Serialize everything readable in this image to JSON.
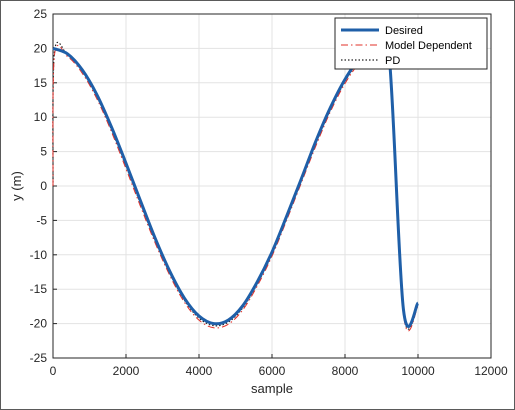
{
  "chart_data": {
    "type": "line",
    "title": "",
    "xlabel": "sample",
    "ylabel": "y (m)",
    "xlim": [
      0,
      12000
    ],
    "ylim": [
      -25,
      25
    ],
    "xticks": [
      0,
      2000,
      4000,
      6000,
      8000,
      10000,
      12000
    ],
    "yticks": [
      -25,
      -20,
      -15,
      -10,
      -5,
      0,
      5,
      10,
      15,
      20,
      25
    ],
    "xtick_labels": [
      "0",
      "2000",
      "4000",
      "6000",
      "8000",
      "10000",
      "12000"
    ],
    "ytick_labels": [
      "-25",
      "-20",
      "-15",
      "-10",
      "-5",
      "0",
      "5",
      "10",
      "15",
      "20",
      "25"
    ],
    "grid": true,
    "legend_position": "top-right",
    "series": [
      {
        "name": "Desired",
        "color": "#1f5fa8",
        "style": "solid",
        "x": [
          0,
          400,
          800,
          1200,
          1600,
          2000,
          2400,
          2800,
          3200,
          3600,
          4000,
          4400,
          4800,
          5200,
          5600,
          6000,
          6400,
          6800,
          7200,
          7600,
          8000,
          8400,
          8800,
          9200,
          9600,
          10000
        ],
        "y": [
          20.0,
          19.2,
          16.9,
          13.3,
          8.6,
          3.3,
          -2.2,
          -7.6,
          -12.4,
          -16.3,
          -18.9,
          -20.0,
          -19.5,
          -17.4,
          -13.9,
          -9.6,
          -4.4,
          1.0,
          6.5,
          11.4,
          15.5,
          18.5,
          19.9,
          19.5,
          -17.9,
          -17.0
        ]
      },
      {
        "name": "Model Dependent",
        "color": "#e0302a",
        "style": "dashdot",
        "x": [
          0,
          40,
          400,
          800,
          1200,
          1600,
          2000,
          2400,
          2800,
          3200,
          3600,
          4000,
          4400,
          4800,
          5200,
          5600,
          6000,
          6400,
          6800,
          7200,
          7600,
          8000,
          8400,
          8800,
          9200,
          9600,
          10000
        ],
        "y": [
          0.0,
          19.0,
          18.8,
          16.4,
          12.7,
          7.9,
          2.5,
          -3.0,
          -8.3,
          -13.0,
          -16.9,
          -19.5,
          -20.6,
          -20.1,
          -18.0,
          -14.5,
          -10.2,
          -5.0,
          0.4,
          5.8,
          10.8,
          14.9,
          17.9,
          19.3,
          18.9,
          -18.6,
          -17.5
        ]
      },
      {
        "name": "PD",
        "color": "#222222",
        "style": "dotted",
        "x": [
          0,
          40,
          400,
          800,
          1200,
          1600,
          2000,
          2400,
          2800,
          3200,
          3600,
          4000,
          4400,
          4800,
          5200,
          5600,
          6000,
          6400,
          6800,
          7200,
          7600,
          8000,
          8400,
          8800,
          9200,
          9600,
          10000
        ],
        "y": [
          0.0,
          19.5,
          19.0,
          16.7,
          13.0,
          8.2,
          2.9,
          -2.6,
          -8.0,
          -12.7,
          -16.6,
          -19.2,
          -20.3,
          -19.8,
          -17.7,
          -14.2,
          -9.9,
          -4.7,
          0.7,
          6.2,
          11.1,
          15.2,
          18.2,
          19.6,
          19.2,
          -18.3,
          -17.3
        ]
      }
    ]
  }
}
